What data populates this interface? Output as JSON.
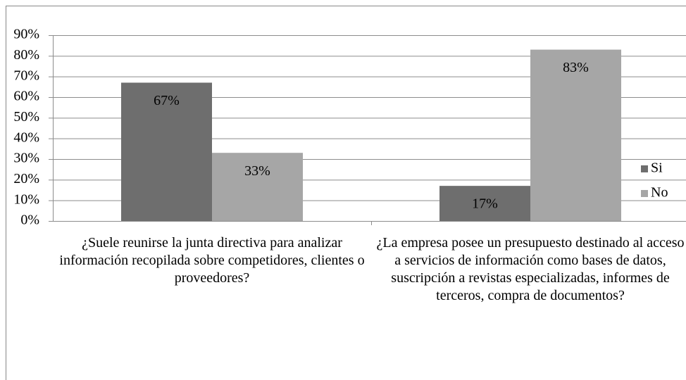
{
  "chart_data": {
    "type": "bar",
    "categories": [
      "¿Suele reunirse la junta directiva para analizar información recopilada sobre competidores, clientes o proveedores?",
      "¿La empresa posee un presupuesto destinado al acceso a servicios de información como bases de datos, suscripción a revistas especializadas, informes de terceros, compra de documentos?"
    ],
    "series": [
      {
        "name": "Si",
        "color": "#6e6e6e",
        "values": [
          67,
          17
        ],
        "value_labels": [
          "67%",
          "17%"
        ]
      },
      {
        "name": "No",
        "color": "#a6a6a6",
        "values": [
          33,
          83
        ],
        "value_labels": [
          "33%",
          "83%"
        ]
      }
    ],
    "ylim": [
      0,
      90
    ],
    "yticks": [
      {
        "value": 0,
        "label": "0%"
      },
      {
        "value": 10,
        "label": "10%"
      },
      {
        "value": 20,
        "label": "20%"
      },
      {
        "value": 30,
        "label": "30%"
      },
      {
        "value": 40,
        "label": "40%"
      },
      {
        "value": 50,
        "label": "50%"
      },
      {
        "value": 60,
        "label": "60%"
      },
      {
        "value": 70,
        "label": "70%"
      },
      {
        "value": 80,
        "label": "80%"
      },
      {
        "value": 90,
        "label": "90%"
      }
    ],
    "grid": true,
    "legend": "right"
  }
}
